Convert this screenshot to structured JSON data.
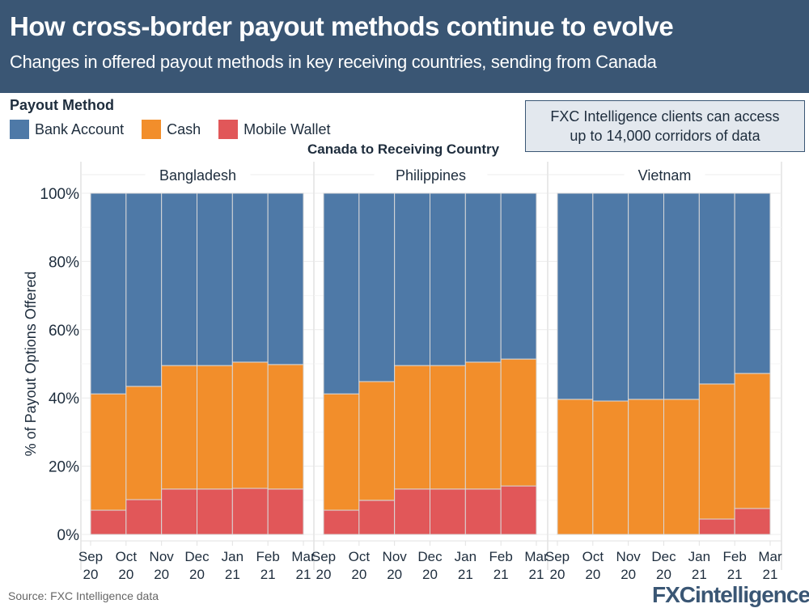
{
  "header": {
    "title": "How cross-border payout methods continue to evolve",
    "subtitle": "Changes in offered payout methods in key receiving countries, sending from Canada"
  },
  "legend": {
    "title": "Payout Method",
    "items": [
      {
        "label": "Bank Account",
        "color": "#4e79a7"
      },
      {
        "label": "Cash",
        "color": "#f28e2b"
      },
      {
        "label": "Mobile Wallet",
        "color": "#e15759"
      }
    ]
  },
  "callout": {
    "line1": "FXC Intelligence clients can access",
    "line2": "up to 14,000 corridors of data"
  },
  "footer": {
    "source": "Source: FXC Intelligence data",
    "logo_main": "FXC",
    "logo_rest": "intelligence"
  },
  "chart_data": {
    "type": "bar",
    "stacked": true,
    "title": "How cross-border payout methods continue to evolve",
    "facet_title": "Canada to Receiving Country",
    "ylabel": "% of Payout Options Offered",
    "ylim": [
      0,
      100
    ],
    "yticks": [
      "0%",
      "20%",
      "40%",
      "60%",
      "80%",
      "100%"
    ],
    "ytick_values": [
      0,
      20,
      40,
      60,
      80,
      100
    ],
    "grid": true,
    "legend_position": "top-left",
    "boundary_labels": [
      [
        "Sep",
        "20"
      ],
      [
        "Oct",
        "20"
      ],
      [
        "Nov",
        "20"
      ],
      [
        "Dec",
        "20"
      ],
      [
        "Jan",
        "21"
      ],
      [
        "Feb",
        "21"
      ],
      [
        "Mar",
        "21"
      ]
    ],
    "note": "Each bar spans the interval between consecutive month labels",
    "series_names": [
      "Mobile Wallet",
      "Cash",
      "Bank Account"
    ],
    "panels": [
      {
        "name": "Bangladesh",
        "series": [
          {
            "name": "Mobile Wallet",
            "values": [
              7.1,
              10.2,
              13.3,
              13.3,
              13.5,
              13.3
            ]
          },
          {
            "name": "Cash",
            "values": [
              34.1,
              33.2,
              36.2,
              36.2,
              37.0,
              36.5
            ]
          },
          {
            "name": "Bank Account",
            "values": [
              58.8,
              56.6,
              50.5,
              50.5,
              49.5,
              50.2
            ]
          }
        ]
      },
      {
        "name": "Philippines",
        "series": [
          {
            "name": "Mobile Wallet",
            "values": [
              7.1,
              10.0,
              13.3,
              13.3,
              13.3,
              14.2
            ]
          },
          {
            "name": "Cash",
            "values": [
              34.1,
              34.8,
              36.2,
              36.2,
              37.2,
              37.2
            ]
          },
          {
            "name": "Bank Account",
            "values": [
              58.8,
              55.2,
              50.5,
              50.5,
              49.5,
              48.6
            ]
          }
        ]
      },
      {
        "name": "Vietnam",
        "series": [
          {
            "name": "Mobile Wallet",
            "values": [
              0,
              0,
              0,
              0,
              4.5,
              7.6
            ]
          },
          {
            "name": "Cash",
            "values": [
              39.6,
              39.1,
              39.6,
              39.6,
              39.6,
              39.6
            ]
          },
          {
            "name": "Bank Account",
            "values": [
              60.4,
              60.9,
              60.4,
              60.4,
              55.9,
              52.8
            ]
          }
        ]
      }
    ]
  }
}
